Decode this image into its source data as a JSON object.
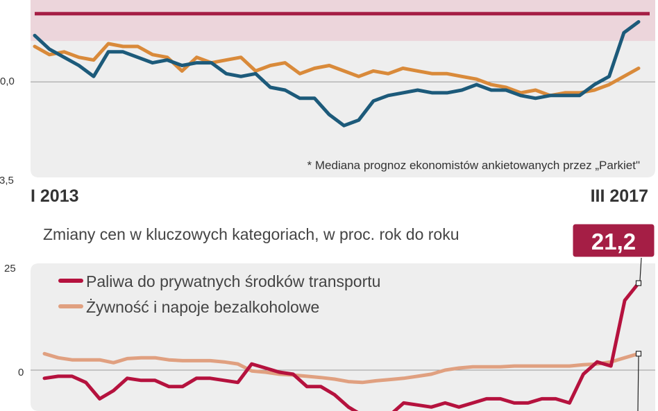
{
  "chart_data": [
    {
      "type": "line",
      "title": "",
      "xlabel": "",
      "ylabel": "",
      "x_start_label": "I 2013",
      "x_end_label": "III 2017",
      "y_tick_labels": [
        "0,0",
        "-3,5"
      ],
      "ylim": [
        -3.5,
        3.0
      ],
      "footnote": "* Mediana prognoz ekonomistów ankietowanych przez „Parkiet\"",
      "target_band": {
        "low": 1.5,
        "high": 3.0,
        "line": 2.5,
        "color": "#a51e45",
        "band_color": "#ecd5db"
      },
      "grid": false,
      "series": [
        {
          "color": "#1c5a7a",
          "values": [
            1.7,
            1.2,
            0.9,
            0.6,
            0.2,
            1.1,
            1.1,
            0.9,
            0.7,
            0.8,
            0.6,
            0.7,
            0.7,
            0.3,
            0.2,
            0.3,
            -0.2,
            -0.3,
            -0.6,
            -0.6,
            -1.2,
            -1.6,
            -1.4,
            -0.7,
            -0.5,
            -0.4,
            -0.3,
            -0.4,
            -0.4,
            -0.3,
            -0.1,
            -0.3,
            -0.3,
            -0.5,
            -0.6,
            -0.5,
            -0.5,
            -0.5,
            -0.1,
            0.2,
            1.8,
            2.2
          ]
        },
        {
          "color": "#d98a3a",
          "values": [
            1.3,
            1.0,
            1.1,
            0.9,
            0.8,
            1.4,
            1.3,
            1.3,
            1.0,
            0.9,
            0.4,
            0.9,
            0.7,
            0.8,
            0.9,
            0.4,
            0.6,
            0.7,
            0.3,
            0.5,
            0.6,
            0.4,
            0.2,
            0.4,
            0.3,
            0.5,
            0.4,
            0.3,
            0.3,
            0.2,
            0.1,
            -0.1,
            -0.2,
            -0.4,
            -0.3,
            -0.5,
            -0.4,
            -0.4,
            -0.3,
            -0.1,
            0.2,
            0.5
          ]
        }
      ]
    },
    {
      "type": "line",
      "title": "Zmiany cen w kluczowych kategoriach, w proc. rok do roku",
      "xlabel": "",
      "ylabel": "",
      "y_tick_labels": [
        "25",
        "0"
      ],
      "ylim": [
        -15,
        26
      ],
      "grid": false,
      "legend_position": "top-left",
      "callout": {
        "label": "21,2",
        "value": 21.2
      },
      "series": [
        {
          "name": "Paliwa do prywatnych środków transportu",
          "color": "#b5123e",
          "values": [
            -2,
            -1.5,
            -1.5,
            -3,
            -7,
            -5,
            -2,
            -2.5,
            -2.5,
            -4,
            -4,
            -2,
            -2,
            -2.5,
            -3,
            1.5,
            0.5,
            -0.5,
            -1,
            -4,
            -4,
            -6,
            -9,
            -11,
            -12,
            -11,
            -8,
            -8.5,
            -9,
            -8,
            -9,
            -8,
            -7,
            -7,
            -8,
            -8,
            -7,
            -7,
            -8,
            -1,
            2,
            1,
            17,
            21.2
          ]
        },
        {
          "name": "Żywność i napoje bezalkoholowe",
          "color": "#e0a080",
          "values": [
            4,
            3,
            2.5,
            2.5,
            2.5,
            1.8,
            2.8,
            3,
            3,
            2.5,
            2.3,
            2.3,
            2.3,
            2,
            1.5,
            -0.2,
            -0.5,
            -1,
            -1.2,
            -1.5,
            -1.8,
            -2.2,
            -2.8,
            -3,
            -2.6,
            -2.3,
            -2,
            -1.5,
            -1,
            0,
            0.5,
            0.8,
            0.8,
            0.8,
            1,
            1,
            1,
            1,
            1,
            1.3,
            1.5,
            2,
            3,
            4
          ]
        }
      ]
    }
  ]
}
